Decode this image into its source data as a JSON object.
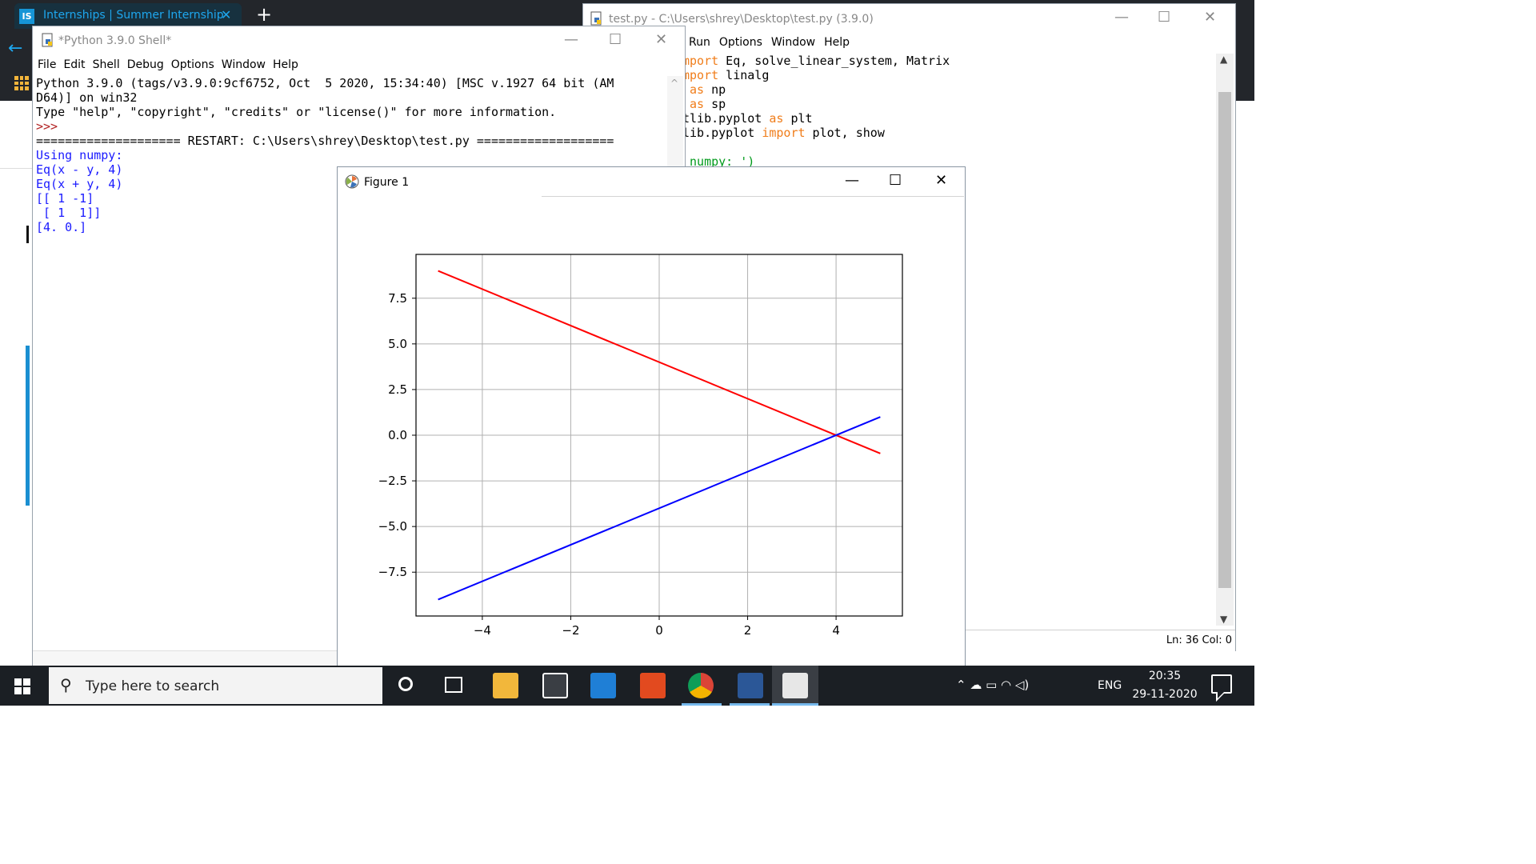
{
  "browser": {
    "logo": "IS",
    "tab_title": "Internships | Summer Internship",
    "tab_close": "✕",
    "new_tab": "+",
    "back": "←"
  },
  "editor": {
    "title": "test.py - C:\\Users\\shrey\\Desktop\\test.py (3.9.0)",
    "menu": [
      "Run",
      "Options",
      "Window",
      "Help"
    ],
    "code_lines": [
      [
        {
          "t": "mport",
          "c": "kw"
        },
        {
          "t": " Eq, solve_linear_system, Matrix",
          "c": ""
        }
      ],
      [
        {
          "t": "mport",
          "c": "kw"
        },
        {
          "t": " linalg",
          "c": ""
        }
      ],
      [
        {
          "t": " as",
          "c": "kw"
        },
        {
          "t": " np",
          "c": ""
        }
      ],
      [
        {
          "t": " as",
          "c": "kw"
        },
        {
          "t": " sp",
          "c": ""
        }
      ],
      [
        {
          "t": "tlib.pyplot ",
          "c": ""
        },
        {
          "t": "as",
          "c": "kw"
        },
        {
          "t": " plt",
          "c": ""
        }
      ],
      [
        {
          "t": "lib.pyplot ",
          "c": ""
        },
        {
          "t": "import",
          "c": "kw"
        },
        {
          "t": " plot, show",
          "c": ""
        }
      ],
      [
        {
          "t": "",
          "c": ""
        }
      ],
      [
        {
          "t": " numpy: ')",
          "c": "str"
        }
      ]
    ],
    "status": "Ln: 36  Col: 0"
  },
  "shell": {
    "title": "*Python 3.9.0 Shell*",
    "menu": [
      "File",
      "Edit",
      "Shell",
      "Debug",
      "Options",
      "Window",
      "Help"
    ],
    "lines": [
      {
        "t": "Python 3.9.0 (tags/v3.9.0:9cf6752, Oct  5 2020, 15:34:40) [MSC v.1927 64 bit (AM",
        "c": ""
      },
      {
        "t": "D64)] on win32",
        "c": ""
      },
      {
        "t": "Type \"help\", \"copyright\", \"credits\" or \"license()\" for more information.",
        "c": ""
      },
      {
        "t": ">>> ",
        "c": "prompt"
      },
      {
        "t": "==================== RESTART: C:\\Users\\shrey\\Desktop\\test.py ===================",
        "c": ""
      },
      {
        "t": "Using numpy:",
        "c": "blue"
      },
      {
        "t": "Eq(x - y, 4)",
        "c": "blue"
      },
      {
        "t": "Eq(x + y, 4)",
        "c": "blue"
      },
      {
        "t": "[[ 1 -1]",
        "c": "blue"
      },
      {
        "t": " [ 1  1]]",
        "c": "blue"
      },
      {
        "t": "[4. 0.]",
        "c": "blue"
      }
    ]
  },
  "figure": {
    "title": "Figure 1"
  },
  "window_controls": {
    "minimize": "—",
    "maximize": "☐",
    "close": "✕"
  },
  "taskbar": {
    "search_placeholder": "Type here to search",
    "lang": "ENG",
    "time": "20:35",
    "date": "29-11-2020",
    "tray": "⌃  ☁  ▭  ◠  ◁)"
  },
  "chart_data": {
    "type": "line",
    "xlim": [
      -5.5,
      5.5
    ],
    "ylim": [
      -9.9,
      9.9
    ],
    "xticks": [
      -4,
      -2,
      0,
      2,
      4
    ],
    "yticks": [
      -7.5,
      -5.0,
      -2.5,
      0.0,
      2.5,
      5.0,
      7.5
    ],
    "xtick_labels": [
      "−4",
      "−2",
      "0",
      "2",
      "4"
    ],
    "ytick_labels": [
      "−7.5",
      "−5.0",
      "−2.5",
      "0.0",
      "2.5",
      "5.0",
      "7.5"
    ],
    "grid": true,
    "series": [
      {
        "color": "#ff0000",
        "x": [
          -5,
          5
        ],
        "y": [
          9,
          -1
        ]
      },
      {
        "color": "#0000ff",
        "x": [
          -5,
          5
        ],
        "y": [
          -9,
          1
        ]
      }
    ]
  }
}
